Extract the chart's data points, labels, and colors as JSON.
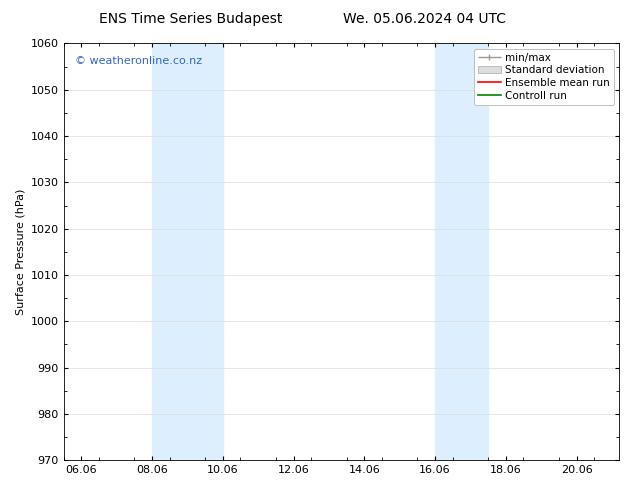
{
  "title_left": "ENS Time Series Budapest",
  "title_right": "We. 05.06.2024 04 UTC",
  "ylabel": "Surface Pressure (hPa)",
  "ylim": [
    970,
    1060
  ],
  "yticks": [
    970,
    980,
    990,
    1000,
    1010,
    1020,
    1030,
    1040,
    1050,
    1060
  ],
  "xlim_start": 5.5,
  "xlim_end": 21.2,
  "xtick_labels": [
    "06.06",
    "08.06",
    "10.06",
    "12.06",
    "14.06",
    "16.06",
    "18.06",
    "20.06"
  ],
  "xtick_positions": [
    6.0,
    8.0,
    10.0,
    12.0,
    14.0,
    16.0,
    18.0,
    20.0
  ],
  "shaded_regions": [
    {
      "x_start": 8.0,
      "x_end": 10.0
    },
    {
      "x_start": 16.0,
      "x_end": 17.5
    }
  ],
  "shaded_color": "#ddeeff",
  "watermark_text": "© weatheronline.co.nz",
  "watermark_color": "#3366bb",
  "legend_labels": [
    "min/max",
    "Standard deviation",
    "Ensemble mean run",
    "Controll run"
  ],
  "legend_colors_line": [
    "#aaaaaa",
    "#cccccc",
    "#ff0000",
    "#008800"
  ],
  "background_color": "#ffffff",
  "plot_bg_color": "#ffffff",
  "grid_color": "#dddddd",
  "title_fontsize": 10,
  "axis_fontsize": 8,
  "tick_fontsize": 8,
  "watermark_fontsize": 8,
  "legend_fontsize": 7.5
}
